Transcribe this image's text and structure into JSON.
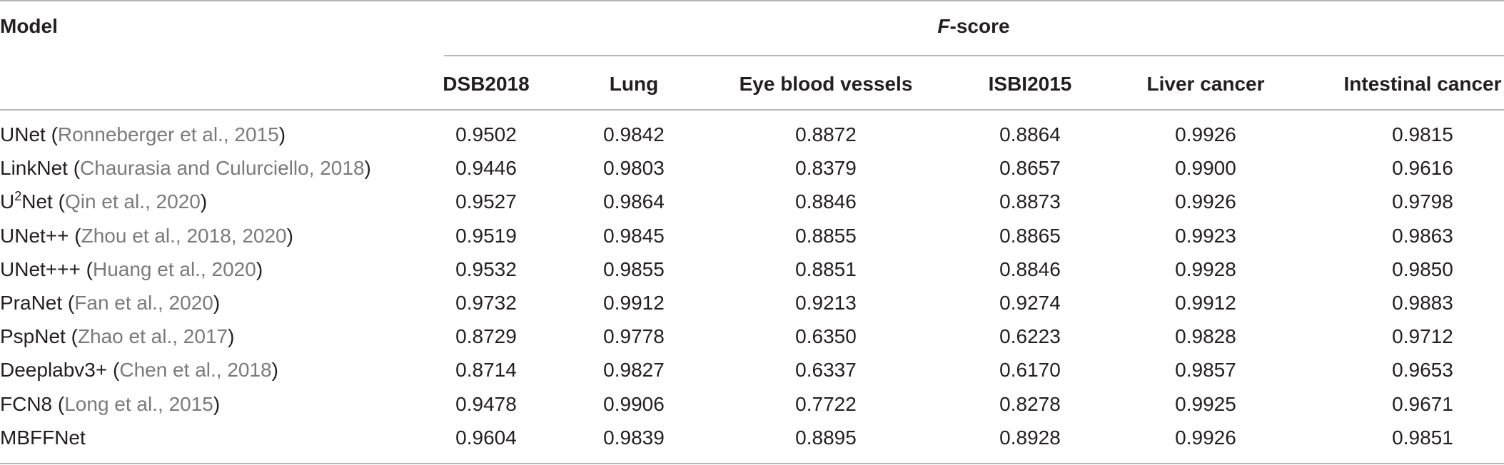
{
  "table": {
    "model_header": "Model",
    "group_header_italic": "F",
    "group_header_rest": "-score",
    "columns": [
      "DSB2018",
      "Lung",
      "Eye blood vessels",
      "ISBI2015",
      "Liver cancer",
      "Intestinal cancer"
    ],
    "rows": [
      {
        "model": "UNet",
        "model_sup": "",
        "model_suffix": "",
        "citation": "Ronneberger et al., 2015",
        "values": [
          "0.9502",
          "0.9842",
          "0.8872",
          "0.8864",
          "0.9926",
          "0.9815"
        ]
      },
      {
        "model": "LinkNet",
        "model_sup": "",
        "model_suffix": "",
        "citation": "Chaurasia and Culurciello, 2018",
        "values": [
          "0.9446",
          "0.9803",
          "0.8379",
          "0.8657",
          "0.9900",
          "0.9616"
        ]
      },
      {
        "model": "U",
        "model_sup": "2",
        "model_suffix": "Net",
        "citation": "Qin et al., 2020",
        "values": [
          "0.9527",
          "0.9864",
          "0.8846",
          "0.8873",
          "0.9926",
          "0.9798"
        ]
      },
      {
        "model": "UNet++",
        "model_sup": "",
        "model_suffix": "",
        "citation": "Zhou et al., 2018, 2020",
        "values": [
          "0.9519",
          "0.9845",
          "0.8855",
          "0.8865",
          "0.9923",
          "0.9863"
        ]
      },
      {
        "model": "UNet+++",
        "model_sup": "",
        "model_suffix": "",
        "citation": "Huang et al., 2020",
        "values": [
          "0.9532",
          "0.9855",
          "0.8851",
          "0.8846",
          "0.9928",
          "0.9850"
        ]
      },
      {
        "model": "PraNet",
        "model_sup": "",
        "model_suffix": "",
        "citation": "Fan et al., 2020",
        "values": [
          "0.9732",
          "0.9912",
          "0.9213",
          "0.9274",
          "0.9912",
          "0.9883"
        ]
      },
      {
        "model": "PspNet",
        "model_sup": "",
        "model_suffix": "",
        "citation": "Zhao et al., 2017",
        "values": [
          "0.8729",
          "0.9778",
          "0.6350",
          "0.6223",
          "0.9828",
          "0.9712"
        ]
      },
      {
        "model": "Deeplabv3+",
        "model_sup": "",
        "model_suffix": "",
        "citation": "Chen et al., 2018",
        "values": [
          "0.8714",
          "0.9827",
          "0.6337",
          "0.6170",
          "0.9857",
          "0.9653"
        ]
      },
      {
        "model": "FCN8",
        "model_sup": "",
        "model_suffix": "",
        "citation": "Long et al., 2015",
        "values": [
          "0.9478",
          "0.9906",
          "0.7722",
          "0.8278",
          "0.9925",
          "0.9671"
        ]
      },
      {
        "model": "MBFFNet",
        "model_sup": "",
        "model_suffix": "",
        "citation": "",
        "values": [
          "0.9604",
          "0.9839",
          "0.8895",
          "0.8928",
          "0.9926",
          "0.9851"
        ]
      }
    ]
  }
}
